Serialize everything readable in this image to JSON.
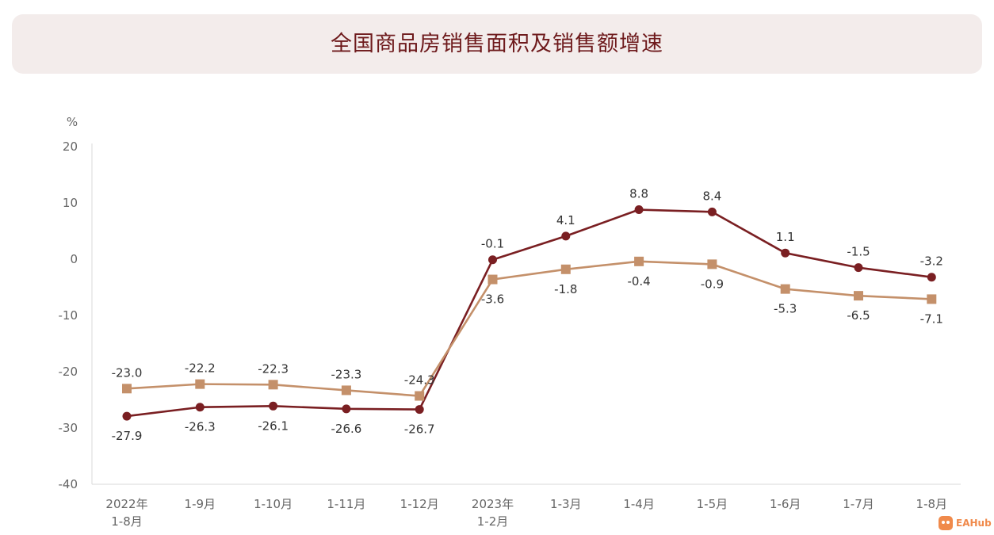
{
  "chart_data": {
    "type": "line",
    "title": "全国商品房销售面积及销售额增速",
    "ylabel": "%",
    "ylim": [
      -40,
      20
    ],
    "yticks": [
      20,
      10,
      0,
      -10,
      -20,
      -30,
      -40
    ],
    "grid": false,
    "categories": [
      [
        "2022年",
        "1-8月"
      ],
      [
        "1-9月"
      ],
      [
        "1-10月"
      ],
      [
        "1-11月"
      ],
      [
        "1-12月"
      ],
      [
        "2023年",
        "1-2月"
      ],
      [
        "1-3月"
      ],
      [
        "1-4月"
      ],
      [
        "1-5月"
      ],
      [
        "1-6月"
      ],
      [
        "1-7月"
      ],
      [
        "1-8月"
      ]
    ],
    "series": [
      {
        "marker": "circle",
        "color": "#7a1f22",
        "values": [
          -27.9,
          -26.3,
          -26.1,
          -26.6,
          -26.7,
          -0.1,
          4.1,
          8.8,
          8.4,
          1.1,
          -1.5,
          -3.2
        ],
        "labels": [
          "-27.9",
          "-26.3",
          "-26.1",
          "-26.6",
          "-26.7",
          "-0.1",
          "4.1",
          "8.8",
          "8.4",
          "1.1",
          "-1.5",
          "-3.2"
        ]
      },
      {
        "marker": "square",
        "color": "#c4906a",
        "values": [
          -23.0,
          -22.2,
          -22.3,
          -23.3,
          -24.3,
          -3.6,
          -1.8,
          -0.4,
          -0.9,
          -5.3,
          -6.5,
          -7.1
        ],
        "labels": [
          "-23.0",
          "-22.2",
          "-22.3",
          "-23.3",
          "-24.3",
          "-3.6",
          "-1.8",
          "-0.4",
          "-0.9",
          "-5.3",
          "-6.5",
          "-7.1"
        ]
      }
    ]
  },
  "watermark": {
    "text": "EAHub",
    "icon": "eahub-logo-icon",
    "color": "#f08a4b"
  }
}
